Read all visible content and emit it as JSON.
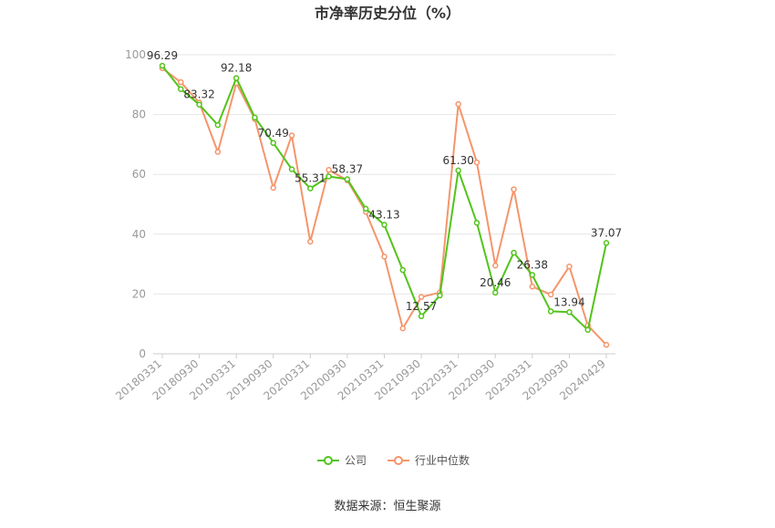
{
  "chart_data": {
    "type": "line",
    "title": "市净率历史分位（%）",
    "source": "数据来源：恒生聚源",
    "ylim": [
      0,
      100
    ],
    "yticks": [
      0,
      20,
      40,
      60,
      80,
      100
    ],
    "grid": true,
    "legend_position": "bottom",
    "x": [
      "20180331",
      "20180630",
      "20180930",
      "20181231",
      "20190331",
      "20190630",
      "20190930",
      "20191231",
      "20200331",
      "20200630",
      "20200930",
      "20201231",
      "20210331",
      "20210630",
      "20210930",
      "20211231",
      "20220331",
      "20220630",
      "20220930",
      "20221231",
      "20230331",
      "20230630",
      "20230930",
      "20231231",
      "20240429"
    ],
    "xtick_labels": [
      "20180331",
      "20180930",
      "20190331",
      "20190930",
      "20200331",
      "20200930",
      "20210331",
      "20210930",
      "20220331",
      "20220930",
      "20230331",
      "20230930",
      "20240429"
    ],
    "xtick_indices": [
      0,
      2,
      4,
      6,
      8,
      10,
      12,
      14,
      16,
      18,
      20,
      22,
      24
    ],
    "series": [
      {
        "name": "公司",
        "color": "#52c41a",
        "values": [
          96.29,
          88.5,
          83.32,
          76.5,
          92.18,
          79.0,
          70.49,
          61.7,
          55.31,
          59.3,
          58.37,
          48.5,
          43.13,
          28.0,
          12.57,
          19.5,
          61.3,
          43.8,
          20.46,
          33.8,
          26.38,
          14.2,
          13.94,
          8.0,
          37.07
        ],
        "labels": {
          "0": "96.29",
          "2": "83.32",
          "4": "92.18",
          "6": "70.49",
          "8": "55.31",
          "10": "58.37",
          "12": "43.13",
          "14": "12.57",
          "16": "61.30",
          "18": "20.46",
          "20": "26.38",
          "22": "13.94",
          "24": "37.07"
        }
      },
      {
        "name": "行业中位数",
        "color": "#f5956b",
        "values": [
          95.5,
          90.8,
          84.0,
          67.5,
          90.5,
          78.5,
          55.5,
          73.0,
          37.5,
          61.5,
          58.0,
          47.5,
          32.5,
          8.5,
          19.0,
          20.5,
          83.5,
          64.0,
          29.5,
          55.0,
          22.5,
          19.8,
          29.2,
          9.5,
          3.0
        ],
        "labels": {}
      }
    ]
  }
}
